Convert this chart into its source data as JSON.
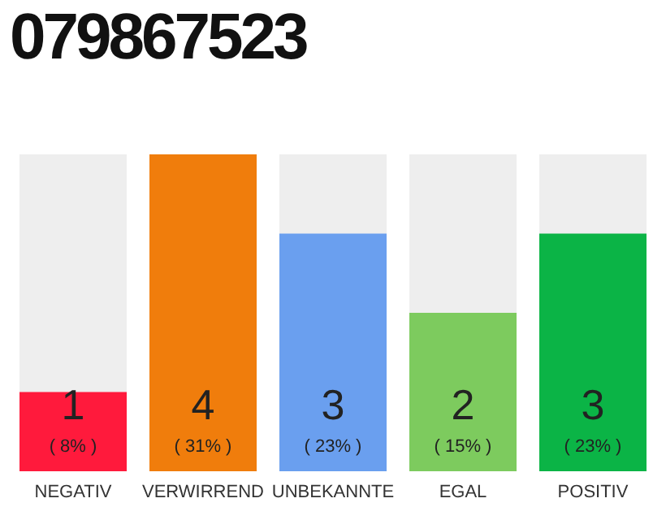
{
  "chart_data": {
    "type": "bar",
    "title": "079867523",
    "categories": [
      "NEGATIV",
      "VERWIRREND",
      "UNBEKANNTE",
      "EGAL",
      "POSITIV"
    ],
    "values": [
      1,
      4,
      3,
      2,
      3
    ],
    "colors": [
      "#ff1a3c",
      "#f07d0c",
      "#6a9fef",
      "#7dcb5e",
      "#0bb446"
    ],
    "data_labels": true,
    "annotations": [
      "( 8% )",
      "( 31% )",
      "( 23% )",
      "( 15% )",
      "( 23% )"
    ]
  }
}
